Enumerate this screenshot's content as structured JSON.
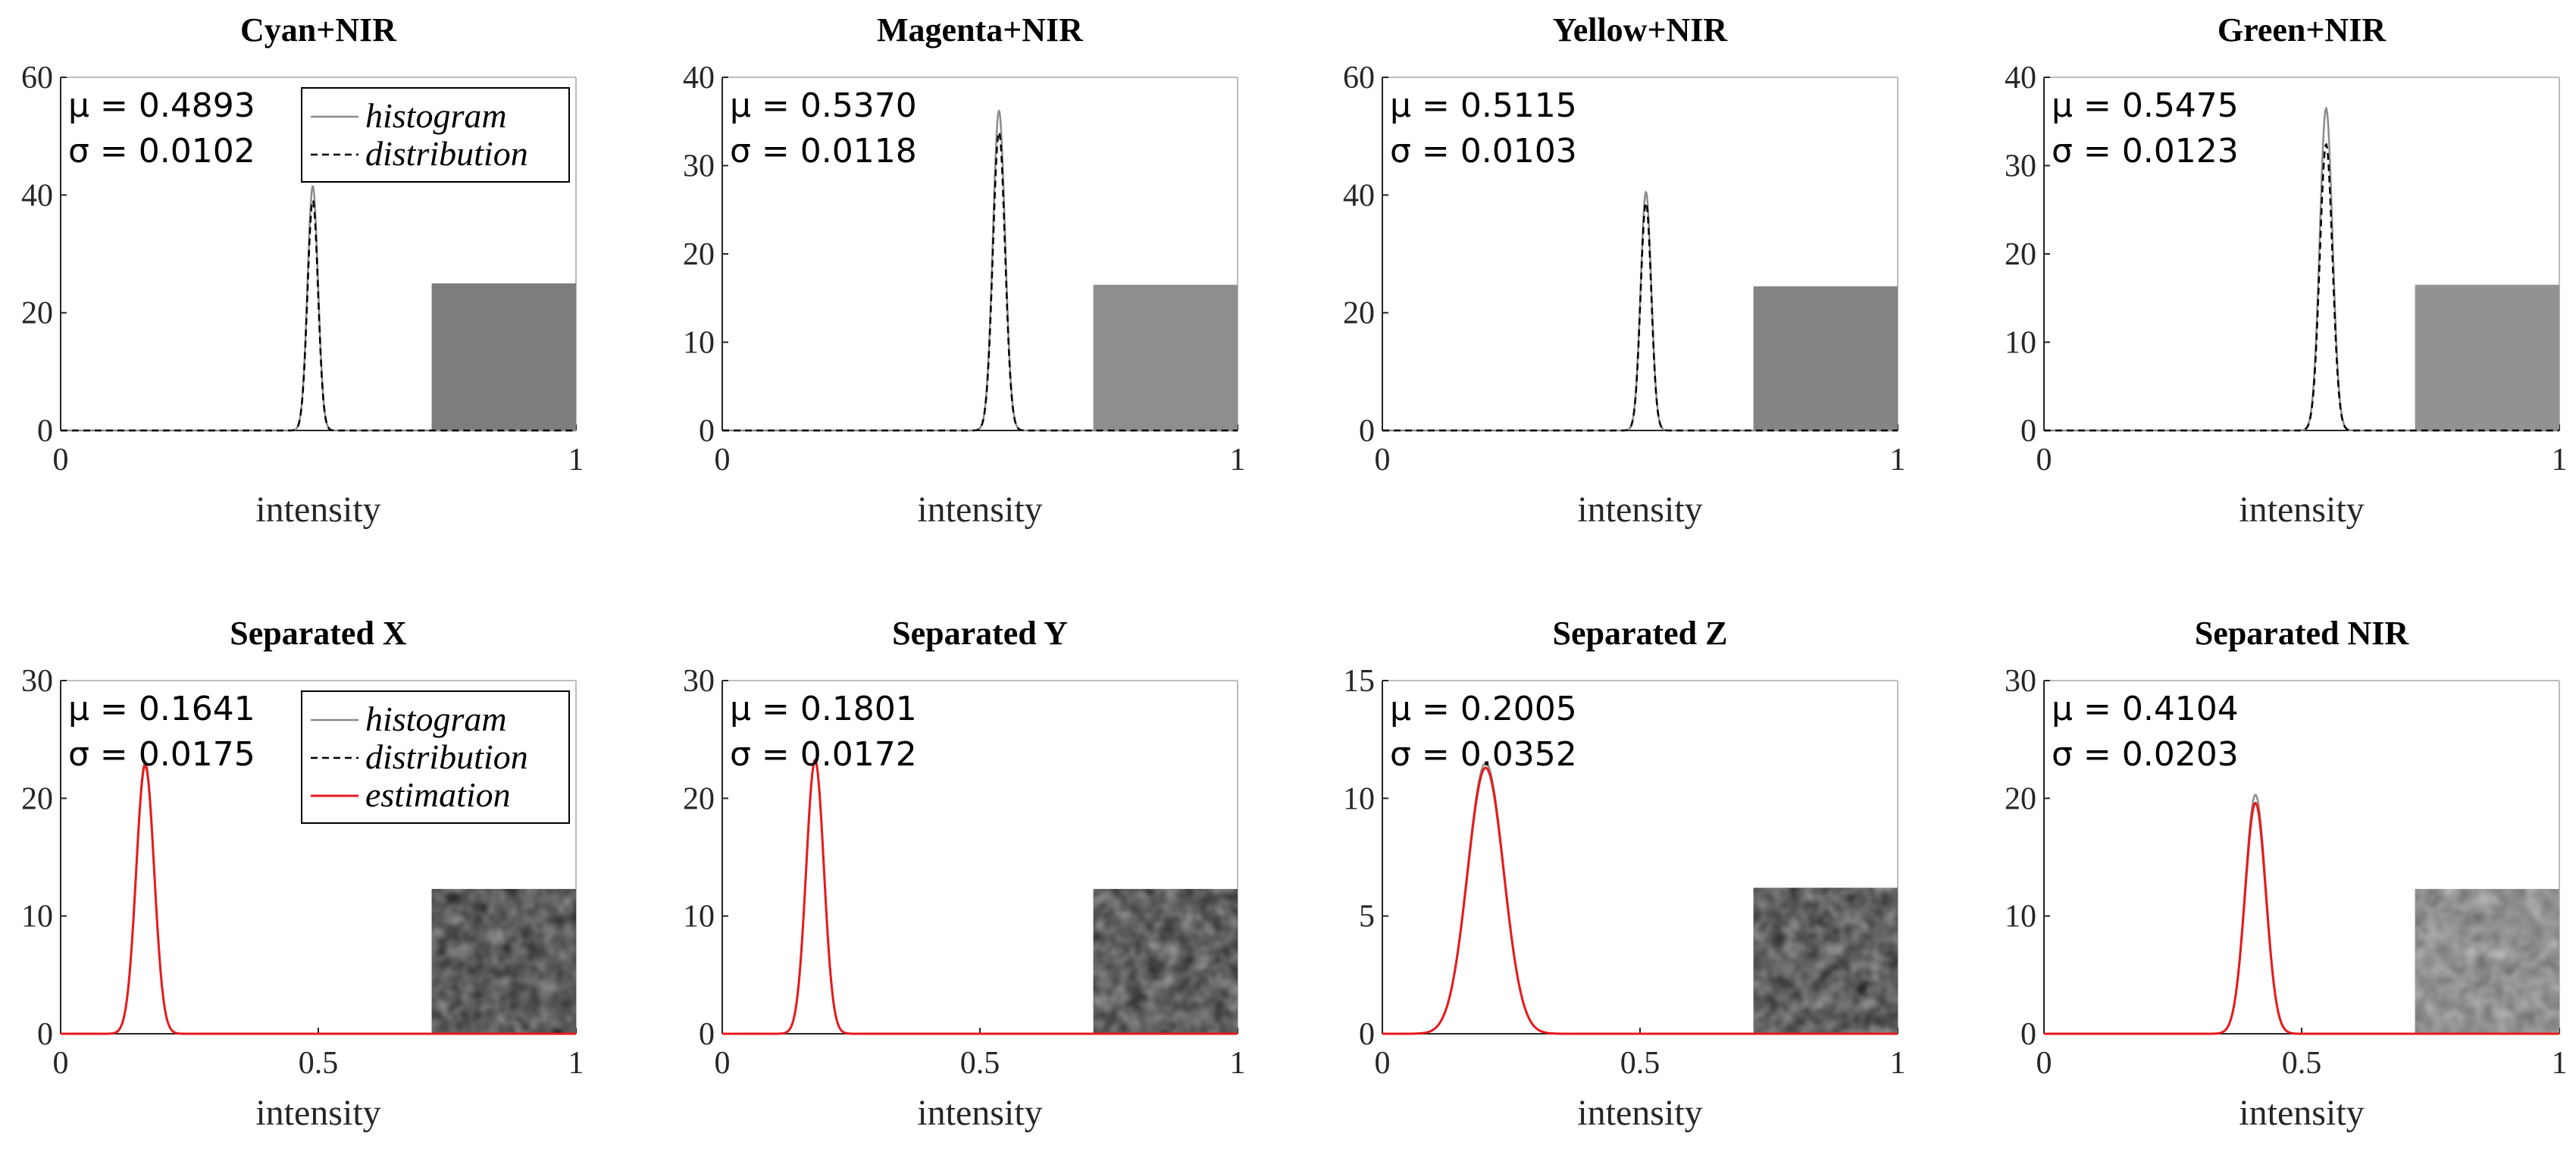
{
  "chart_data": [
    {
      "type": "line",
      "title": "Cyan+NIR",
      "xlabel": "intensity",
      "xlim": [
        0,
        1
      ],
      "ylim": [
        0,
        60
      ],
      "xticks": [
        "0",
        "1"
      ],
      "yticks": [
        "0",
        "20",
        "40",
        "60"
      ],
      "stats": {
        "mu": "μ = 0.4893",
        "sigma": "σ = 0.0102"
      },
      "mean": 0.4893,
      "std": 0.0102,
      "legend": [
        "histogram",
        "distribution"
      ],
      "legend_position": "top-right",
      "series": [
        {
          "name": "histogram",
          "style": "solid",
          "color": "#8c8c8c",
          "peak": 41.5
        },
        {
          "name": "distribution",
          "style": "dashed",
          "color": "#000000",
          "peak": 39.1
        }
      ],
      "swatch": {
        "color": "#7d7d7d",
        "top_value": 25,
        "texture": "smooth"
      }
    },
    {
      "type": "line",
      "title": "Magenta+NIR",
      "xlabel": "intensity",
      "xlim": [
        0,
        1
      ],
      "ylim": [
        0,
        40
      ],
      "xticks": [
        "0",
        "1"
      ],
      "yticks": [
        "0",
        "10",
        "20",
        "30",
        "40"
      ],
      "stats": {
        "mu": "μ = 0.5370",
        "sigma": "σ = 0.0118"
      },
      "mean": 0.537,
      "std": 0.0118,
      "series": [
        {
          "name": "histogram",
          "style": "solid",
          "color": "#8c8c8c",
          "peak": 36.2
        },
        {
          "name": "distribution",
          "style": "dashed",
          "color": "#000000",
          "peak": 33.8
        }
      ],
      "swatch": {
        "color": "#8e8e8e",
        "top_value": 16.5,
        "texture": "smooth"
      }
    },
    {
      "type": "line",
      "title": "Yellow+NIR",
      "xlabel": "intensity",
      "xlim": [
        0,
        1
      ],
      "ylim": [
        0,
        60
      ],
      "xticks": [
        "0",
        "1"
      ],
      "yticks": [
        "0",
        "20",
        "40",
        "60"
      ],
      "stats": {
        "mu": "μ = 0.5115",
        "sigma": "σ = 0.0103"
      },
      "mean": 0.5115,
      "std": 0.0103,
      "series": [
        {
          "name": "histogram",
          "style": "solid",
          "color": "#8c8c8c",
          "peak": 40.5
        },
        {
          "name": "distribution",
          "style": "dashed",
          "color": "#000000",
          "peak": 38.7
        }
      ],
      "swatch": {
        "color": "#858585",
        "top_value": 24.5,
        "texture": "smooth"
      }
    },
    {
      "type": "line",
      "title": "Green+NIR",
      "xlabel": "intensity",
      "xlim": [
        0,
        1
      ],
      "ylim": [
        0,
        40
      ],
      "xticks": [
        "0",
        "1"
      ],
      "yticks": [
        "0",
        "10",
        "20",
        "30",
        "40"
      ],
      "stats": {
        "mu": "μ = 0.5475",
        "sigma": "σ = 0.0123"
      },
      "mean": 0.5475,
      "std": 0.0123,
      "series": [
        {
          "name": "histogram",
          "style": "solid",
          "color": "#8c8c8c",
          "peak": 36.5
        },
        {
          "name": "distribution",
          "style": "dashed",
          "color": "#000000",
          "peak": 32.4
        }
      ],
      "swatch": {
        "color": "#929292",
        "top_value": 16.5,
        "texture": "smooth"
      }
    },
    {
      "type": "line",
      "title": "Separated X",
      "xlabel": "intensity",
      "xlim": [
        0,
        1
      ],
      "ylim": [
        0,
        30
      ],
      "xticks": [
        "0",
        "0.5",
        "1"
      ],
      "yticks": [
        "0",
        "10",
        "20",
        "30"
      ],
      "stats": {
        "mu": "μ = 0.1641",
        "sigma": "σ = 0.0175"
      },
      "mean": 0.1641,
      "std": 0.0175,
      "legend": [
        "histogram",
        "distribution",
        "estimation"
      ],
      "legend_position": "top-right",
      "series": [
        {
          "name": "histogram",
          "style": "solid",
          "color": "#8c8c8c",
          "peak": 23.1
        },
        {
          "name": "distribution",
          "style": "dashed",
          "color": "#000000",
          "peak": 22.8
        },
        {
          "name": "estimation",
          "style": "solid",
          "color": "#e8191c",
          "peak": 22.8
        }
      ],
      "swatch": {
        "color": "#262626",
        "top_value": 12.3,
        "texture": "mottled"
      }
    },
    {
      "type": "line",
      "title": "Separated Y",
      "xlabel": "intensity",
      "xlim": [
        0,
        1
      ],
      "ylim": [
        0,
        30
      ],
      "xticks": [
        "0",
        "0.5",
        "1"
      ],
      "yticks": [
        "0",
        "10",
        "20",
        "30"
      ],
      "stats": {
        "mu": "μ = 0.1801",
        "sigma": "σ = 0.0172"
      },
      "mean": 0.1801,
      "std": 0.0172,
      "series": [
        {
          "name": "histogram",
          "style": "solid",
          "color": "#8c8c8c",
          "peak": 23.3
        },
        {
          "name": "distribution",
          "style": "dashed",
          "color": "#000000",
          "peak": 23.2
        },
        {
          "name": "estimation",
          "style": "solid",
          "color": "#e8191c",
          "peak": 23.2
        }
      ],
      "swatch": {
        "color": "#2b2b2b",
        "top_value": 12.3,
        "texture": "mottled"
      }
    },
    {
      "type": "line",
      "title": "Separated Z",
      "xlabel": "intensity",
      "xlim": [
        0,
        1
      ],
      "ylim": [
        0,
        15
      ],
      "xticks": [
        "0",
        "0.5",
        "1"
      ],
      "yticks": [
        "0",
        "5",
        "10",
        "15"
      ],
      "stats": {
        "mu": "μ = 0.2005",
        "sigma": "σ = 0.0352"
      },
      "mean": 0.2005,
      "std": 0.0352,
      "series": [
        {
          "name": "histogram",
          "style": "solid",
          "color": "#8c8c8c",
          "peak": 11.5
        },
        {
          "name": "distribution",
          "style": "dashed",
          "color": "#000000",
          "peak": 11.3
        },
        {
          "name": "estimation",
          "style": "solid",
          "color": "#e8191c",
          "peak": 11.3
        }
      ],
      "swatch": {
        "color": "#2e2e2e",
        "top_value": 6.2,
        "texture": "mottled"
      }
    },
    {
      "type": "line",
      "title": "Separated NIR",
      "xlabel": "intensity",
      "xlim": [
        0,
        1
      ],
      "ylim": [
        0,
        30
      ],
      "xticks": [
        "0",
        "0.5",
        "1"
      ],
      "yticks": [
        "0",
        "10",
        "20",
        "30"
      ],
      "stats": {
        "mu": "μ = 0.4104",
        "sigma": "σ = 0.0203"
      },
      "mean": 0.4104,
      "std": 0.0203,
      "series": [
        {
          "name": "histogram",
          "style": "solid",
          "color": "#8c8c8c",
          "peak": 20.3
        },
        {
          "name": "distribution",
          "style": "dashed",
          "color": "#000000",
          "peak": 19.6
        },
        {
          "name": "estimation",
          "style": "solid",
          "color": "#e8191c",
          "peak": 19.6
        }
      ],
      "swatch": {
        "color": "#6e6e6e",
        "top_value": 12.3,
        "texture": "mottled"
      }
    }
  ]
}
